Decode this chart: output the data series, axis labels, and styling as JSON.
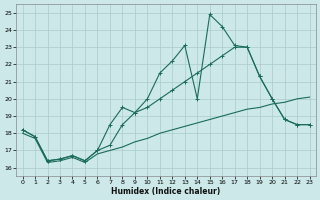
{
  "xlabel": "Humidex (Indice chaleur)",
  "bg_color": "#cce8e8",
  "grid_color": "#aacccc",
  "line_color": "#1a6b5a",
  "xlim": [
    -0.5,
    23.5
  ],
  "ylim": [
    15.5,
    25.5
  ],
  "xticks": [
    0,
    1,
    2,
    3,
    4,
    5,
    6,
    7,
    8,
    9,
    10,
    11,
    12,
    13,
    14,
    15,
    16,
    17,
    18,
    19,
    20,
    21,
    22,
    23
  ],
  "yticks": [
    16,
    17,
    18,
    19,
    20,
    21,
    22,
    23,
    24,
    25
  ],
  "line1_x": [
    0,
    1,
    2,
    3,
    4,
    5,
    6,
    7,
    8,
    9,
    10,
    11,
    12,
    13,
    14,
    15,
    16,
    17,
    18,
    19,
    20,
    21,
    22,
    23
  ],
  "line1_y": [
    18.2,
    17.8,
    16.4,
    16.5,
    16.7,
    16.4,
    17.0,
    18.5,
    19.5,
    19.2,
    20.0,
    21.5,
    22.2,
    23.1,
    20.0,
    24.9,
    24.2,
    23.1,
    23.0,
    21.3,
    20.0,
    18.8,
    18.5,
    18.5
  ],
  "line2_x": [
    0,
    1,
    2,
    3,
    4,
    5,
    6,
    7,
    8,
    9,
    10,
    11,
    12,
    13,
    14,
    15,
    16,
    17,
    18,
    19,
    20,
    21,
    22,
    23
  ],
  "line2_y": [
    18.2,
    17.8,
    16.4,
    16.5,
    16.7,
    16.4,
    17.0,
    17.3,
    18.5,
    19.2,
    19.5,
    20.0,
    20.5,
    21.0,
    21.5,
    22.0,
    22.5,
    23.0,
    23.0,
    21.3,
    20.0,
    18.8,
    18.5,
    18.5
  ],
  "line3_x": [
    0,
    1,
    2,
    3,
    4,
    5,
    6,
    7,
    8,
    9,
    10,
    11,
    12,
    13,
    14,
    15,
    16,
    17,
    18,
    19,
    20,
    21,
    22,
    23
  ],
  "line3_y": [
    18.0,
    17.7,
    16.3,
    16.4,
    16.6,
    16.3,
    16.8,
    17.0,
    17.2,
    17.5,
    17.7,
    18.0,
    18.2,
    18.4,
    18.6,
    18.8,
    19.0,
    19.2,
    19.4,
    19.5,
    19.7,
    19.8,
    20.0,
    20.1
  ]
}
